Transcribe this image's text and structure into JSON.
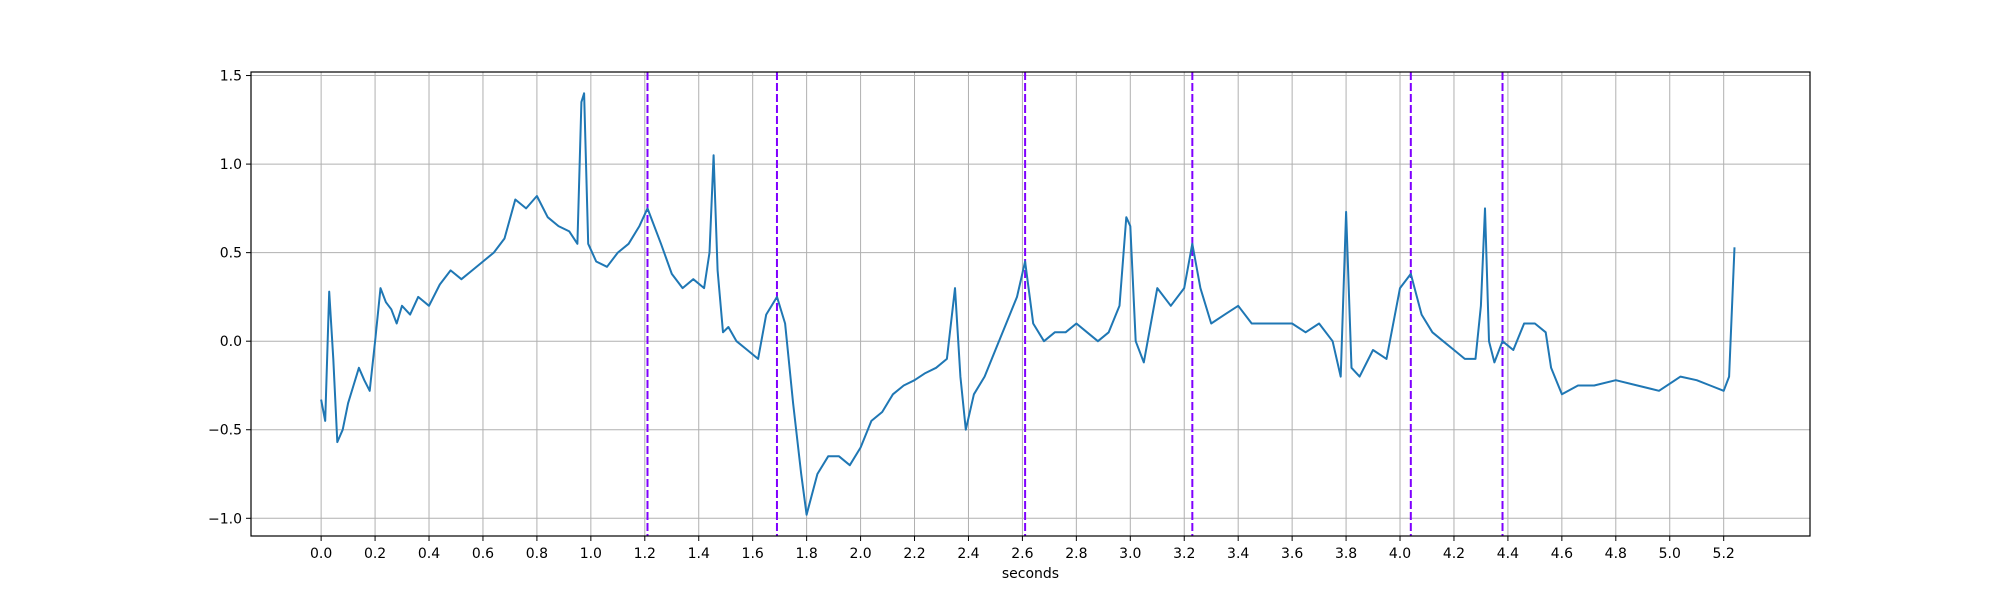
{
  "chart_data": {
    "type": "line",
    "title": "",
    "xlabel": "seconds",
    "ylabel": "",
    "xlim": [
      -0.26,
      5.52
    ],
    "ylim": [
      -1.1,
      1.52
    ],
    "grid": true,
    "x_ticks": [
      0.0,
      0.2,
      0.4,
      0.6,
      0.8,
      1.0,
      1.2,
      1.4,
      1.6,
      1.8,
      2.0,
      2.2,
      2.4,
      2.6,
      2.8,
      3.0,
      3.2,
      3.4,
      3.6,
      3.8,
      4.0,
      4.2,
      4.4,
      4.6,
      4.8,
      5.0,
      5.2
    ],
    "x_tick_labels": [
      "0.0",
      "0.2",
      "0.4",
      "0.6",
      "0.8",
      "1.0",
      "1.2",
      "1.4",
      "1.6",
      "1.8",
      "2.0",
      "2.2",
      "2.4",
      "2.6",
      "2.8",
      "3.0",
      "3.2",
      "3.4",
      "3.6",
      "3.8",
      "4.0",
      "4.2",
      "4.4",
      "4.6",
      "4.8",
      "5.0",
      "5.2"
    ],
    "y_ticks": [
      1.5,
      1.0,
      0.5,
      0.0,
      -0.5,
      -1.0
    ],
    "y_tick_labels": [
      "1.5",
      "1.0",
      "0.5",
      "0.0",
      "−0.5",
      "−1.0"
    ],
    "line_color": "#1f77b4",
    "marker_color": "#7f00ff",
    "vertical_markers": [
      1.21,
      1.69,
      2.61,
      3.23,
      4.04,
      4.38
    ],
    "series": [
      {
        "x": [
          0.0,
          0.015,
          0.03,
          0.045,
          0.06,
          0.08,
          0.1,
          0.12,
          0.14,
          0.16,
          0.18,
          0.2,
          0.22,
          0.24,
          0.26,
          0.28,
          0.3,
          0.33,
          0.36,
          0.4,
          0.44,
          0.48,
          0.52,
          0.56,
          0.6,
          0.64,
          0.68,
          0.72,
          0.76,
          0.8,
          0.84,
          0.88,
          0.92,
          0.95,
          0.965,
          0.975,
          0.99,
          1.02,
          1.06,
          1.1,
          1.14,
          1.18,
          1.21,
          1.26,
          1.3,
          1.34,
          1.38,
          1.42,
          1.44,
          1.455,
          1.47,
          1.49,
          1.51,
          1.54,
          1.58,
          1.62,
          1.65,
          1.69,
          1.72,
          1.75,
          1.78,
          1.8,
          1.84,
          1.88,
          1.92,
          1.96,
          2.0,
          2.04,
          2.08,
          2.12,
          2.16,
          2.2,
          2.24,
          2.28,
          2.32,
          2.35,
          2.37,
          2.39,
          2.42,
          2.46,
          2.5,
          2.54,
          2.58,
          2.61,
          2.64,
          2.68,
          2.72,
          2.76,
          2.8,
          2.84,
          2.88,
          2.92,
          2.96,
          2.985,
          3.0,
          3.02,
          3.05,
          3.1,
          3.15,
          3.2,
          3.23,
          3.26,
          3.3,
          3.35,
          3.4,
          3.45,
          3.5,
          3.55,
          3.6,
          3.65,
          3.7,
          3.75,
          3.78,
          3.8,
          3.82,
          3.85,
          3.9,
          3.95,
          4.0,
          4.04,
          4.08,
          4.12,
          4.16,
          4.2,
          4.24,
          4.28,
          4.3,
          4.315,
          4.33,
          4.35,
          4.38,
          4.42,
          4.46,
          4.5,
          4.54,
          4.56,
          4.6,
          4.66,
          4.72,
          4.8,
          4.88,
          4.96,
          5.04,
          5.1,
          5.15,
          5.2,
          5.22,
          5.24
        ],
        "values": [
          -0.33,
          -0.45,
          0.28,
          -0.1,
          -0.57,
          -0.5,
          -0.35,
          -0.25,
          -0.15,
          -0.22,
          -0.28,
          0.0,
          0.3,
          0.22,
          0.18,
          0.1,
          0.2,
          0.15,
          0.25,
          0.2,
          0.32,
          0.4,
          0.35,
          0.4,
          0.45,
          0.5,
          0.58,
          0.8,
          0.75,
          0.82,
          0.7,
          0.65,
          0.62,
          0.55,
          1.35,
          1.4,
          0.55,
          0.45,
          0.42,
          0.5,
          0.55,
          0.65,
          0.75,
          0.55,
          0.38,
          0.3,
          0.35,
          0.3,
          0.5,
          1.05,
          0.4,
          0.05,
          0.08,
          0.0,
          -0.05,
          -0.1,
          0.15,
          0.25,
          0.1,
          -0.35,
          -0.75,
          -0.98,
          -0.75,
          -0.65,
          -0.65,
          -0.7,
          -0.6,
          -0.45,
          -0.4,
          -0.3,
          -0.25,
          -0.22,
          -0.18,
          -0.15,
          -0.1,
          0.3,
          -0.2,
          -0.5,
          -0.3,
          -0.2,
          -0.05,
          0.1,
          0.25,
          0.45,
          0.1,
          0.0,
          0.05,
          0.05,
          0.1,
          0.05,
          0.0,
          0.05,
          0.2,
          0.7,
          0.65,
          0.0,
          -0.12,
          0.3,
          0.2,
          0.3,
          0.55,
          0.3,
          0.1,
          0.15,
          0.2,
          0.1,
          0.1,
          0.1,
          0.1,
          0.05,
          0.1,
          0.0,
          -0.2,
          0.73,
          -0.15,
          -0.2,
          -0.05,
          -0.1,
          0.3,
          0.38,
          0.15,
          0.05,
          0.0,
          -0.05,
          -0.1,
          -0.1,
          0.2,
          0.75,
          0.0,
          -0.12,
          0.0,
          -0.05,
          0.1,
          0.1,
          0.05,
          -0.15,
          -0.3,
          -0.25,
          -0.25,
          -0.22,
          -0.25,
          -0.28,
          -0.2,
          -0.22,
          -0.25,
          -0.28,
          -0.2,
          0.53
        ]
      }
    ]
  }
}
